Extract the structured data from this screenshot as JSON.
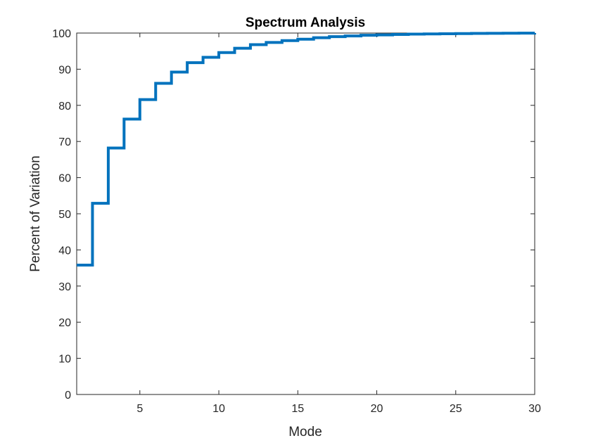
{
  "chart_data": {
    "type": "line",
    "title": "Spectrum Analysis",
    "xlabel": "Mode",
    "ylabel": "Percent of Variation",
    "xlim": [
      1,
      30
    ],
    "ylim": [
      0,
      100
    ],
    "xticks": [
      5,
      10,
      15,
      20,
      25,
      30
    ],
    "yticks": [
      0,
      10,
      20,
      30,
      40,
      50,
      60,
      70,
      80,
      90,
      100
    ],
    "grid": false,
    "legend": "none",
    "line_color": "#0072BD",
    "step": true,
    "series": [
      {
        "x": [
          1,
          2,
          3,
          4,
          5,
          6,
          7,
          8,
          9,
          10,
          11,
          12,
          13,
          14,
          15,
          16,
          17,
          18,
          19,
          20,
          21,
          22,
          23,
          24,
          25,
          26,
          27,
          28,
          29,
          30
        ],
        "values": [
          35.8,
          52.9,
          68.2,
          76.2,
          81.6,
          86.1,
          89.2,
          91.8,
          93.3,
          94.6,
          95.8,
          96.8,
          97.4,
          97.9,
          98.3,
          98.7,
          99.0,
          99.2,
          99.4,
          99.5,
          99.6,
          99.7,
          99.75,
          99.8,
          99.85,
          99.9,
          99.93,
          99.95,
          99.97,
          100
        ]
      }
    ]
  }
}
